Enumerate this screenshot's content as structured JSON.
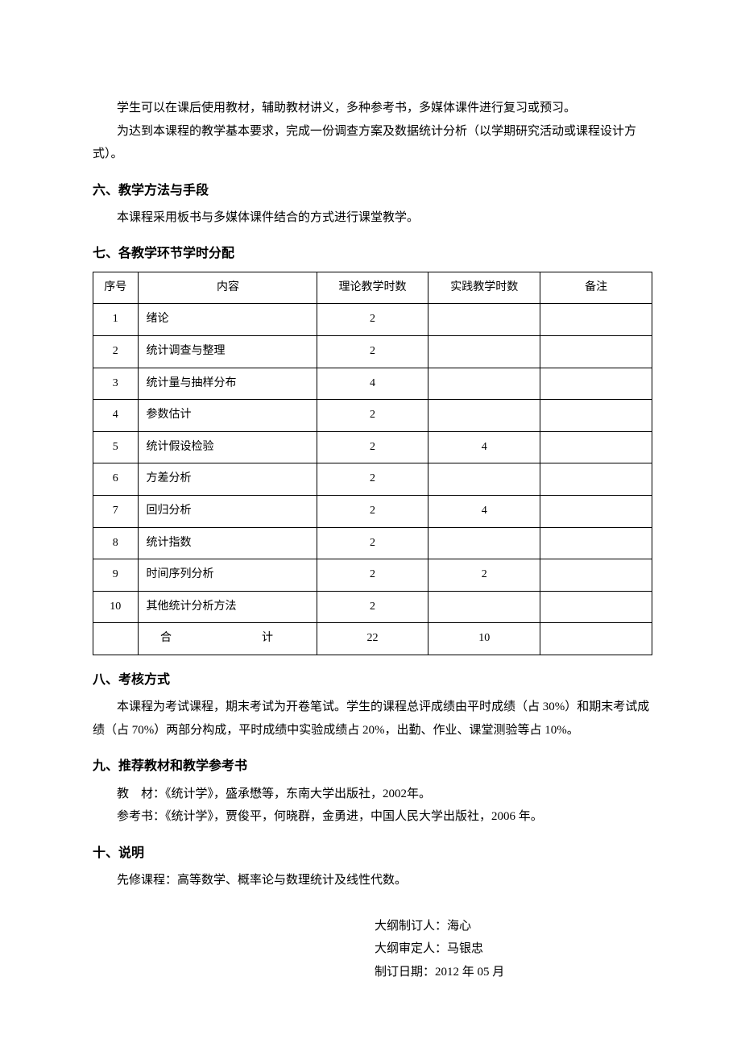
{
  "intro": {
    "para1": "学生可以在课后使用教材，辅助教材讲义，多种参考书，多媒体课件进行复习或预习。",
    "para2": "为达到本课程的教学基本要求，完成一份调查方案及数据统计分析（以学期研究活动或课程设计方式）。"
  },
  "section6": {
    "heading": "六、教学方法与手段",
    "body": "本课程采用板书与多媒体课件结合的方式进行课堂教学。"
  },
  "section7": {
    "heading": "七、各教学环节学时分配",
    "table": {
      "headers": {
        "seq": "序号",
        "content": "内容",
        "theory": "理论教学时数",
        "practice": "实践教学时数",
        "remark": "备注"
      },
      "rows": [
        {
          "seq": "1",
          "content": "绪论",
          "theory": "2",
          "practice": "",
          "remark": ""
        },
        {
          "seq": "2",
          "content": "统计调查与整理",
          "theory": "2",
          "practice": "",
          "remark": ""
        },
        {
          "seq": "3",
          "content": "统计量与抽样分布",
          "theory": "4",
          "practice": "",
          "remark": ""
        },
        {
          "seq": "4",
          "content": "参数估计",
          "theory": "2",
          "practice": "",
          "remark": ""
        },
        {
          "seq": "5",
          "content": "统计假设检验",
          "theory": "2",
          "practice": "4",
          "remark": ""
        },
        {
          "seq": "6",
          "content": "方差分析",
          "theory": "2",
          "practice": "",
          "remark": ""
        },
        {
          "seq": "7",
          "content": "回归分析",
          "theory": "2",
          "practice": "4",
          "remark": ""
        },
        {
          "seq": "8",
          "content": "统计指数",
          "theory": "2",
          "practice": "",
          "remark": ""
        },
        {
          "seq": "9",
          "content": "时间序列分析",
          "theory": "2",
          "practice": "2",
          "remark": ""
        },
        {
          "seq": "10",
          "content": "其他统计分析方法",
          "theory": "2",
          "practice": "",
          "remark": ""
        }
      ],
      "total": {
        "label": "合　　计",
        "theory": "22",
        "practice": "10",
        "remark": ""
      }
    }
  },
  "section8": {
    "heading": "八、考核方式",
    "body": "本课程为考试课程，期末考试为开卷笔试。学生的课程总评成绩由平时成绩（占 30%）和期末考试成绩（占 70%）两部分构成，平时成绩中实验成绩占 20%，出勤、作业、课堂测验等占 10%。"
  },
  "section9": {
    "heading": "九、推荐教材和教学参考书",
    "textbook": "教　材：《统计学》，盛承懋等，东南大学出版社，2002年。",
    "reference": "参考书：《统计学》，贾俊平，何晓群，金勇进，中国人民大学出版社，2006 年。"
  },
  "section10": {
    "heading": "十、说明",
    "body": "先修课程：高等数学、概率论与数理统计及线性代数。"
  },
  "signatures": {
    "author": "大纲制订人：海心",
    "reviewer": "大纲审定人：马银忠",
    "date": "制订日期：2012 年 05 月"
  }
}
